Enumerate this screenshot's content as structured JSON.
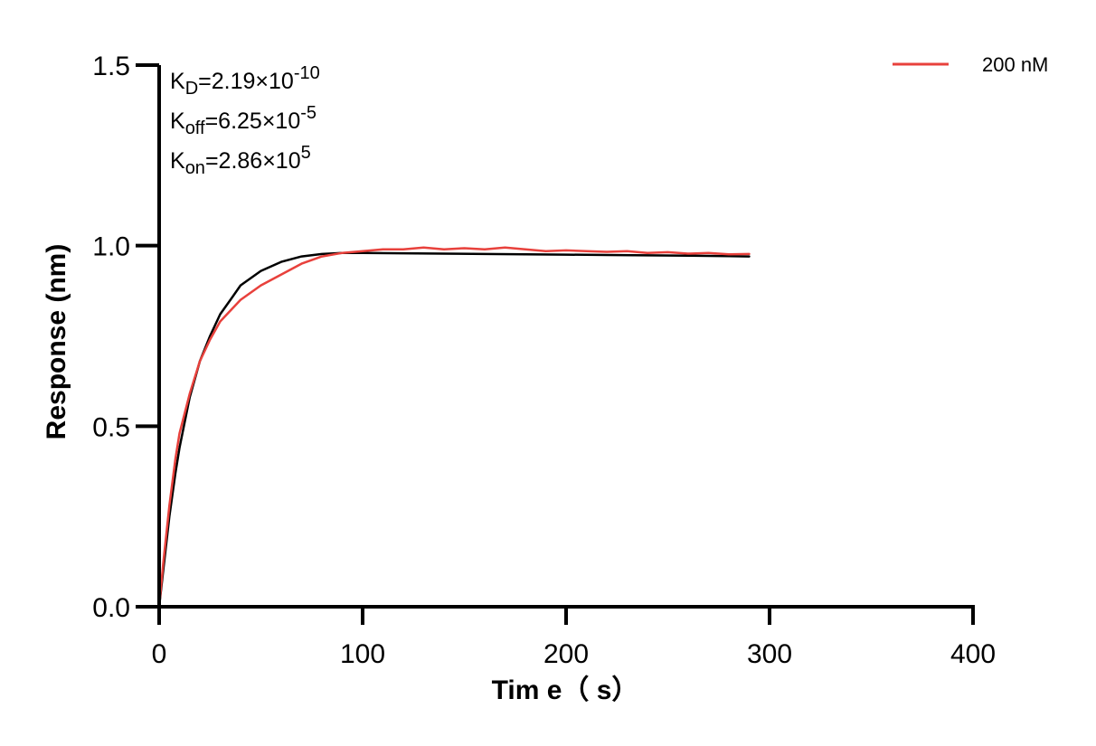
{
  "chart_data": {
    "type": "line",
    "xlabel": "Tim e（ s）",
    "ylabel": "Response (nm)",
    "xlim": [
      0,
      400
    ],
    "ylim": [
      0,
      1.5
    ],
    "x_ticks": [
      "0",
      "100",
      "200",
      "300",
      "400"
    ],
    "y_ticks": [
      "0.0",
      "0.5",
      "1.0",
      "1.5"
    ],
    "grid": false,
    "legend_position": "top-right",
    "annotations": [
      {
        "base": "K",
        "sub": "D",
        "value": "=2.19×10",
        "exp": "-10"
      },
      {
        "base": "K",
        "sub": "off",
        "value": "=6.25×10",
        "exp": "-5"
      },
      {
        "base": "K",
        "sub": "on",
        "value": "=2.86×10",
        "exp": "5"
      }
    ],
    "series": [
      {
        "name": "200 nM",
        "color": "#e8413c",
        "x": [
          0,
          2,
          5,
          8,
          10,
          15,
          20,
          25,
          30,
          35,
          40,
          50,
          60,
          70,
          80,
          90,
          100,
          110,
          120,
          130,
          140,
          150,
          160,
          170,
          180,
          190,
          200,
          210,
          220,
          230,
          240,
          250,
          260,
          270,
          280,
          290
        ],
        "y": [
          0.0,
          0.12,
          0.28,
          0.41,
          0.48,
          0.59,
          0.68,
          0.74,
          0.79,
          0.82,
          0.85,
          0.89,
          0.92,
          0.95,
          0.97,
          0.98,
          0.985,
          0.99,
          0.99,
          0.995,
          0.99,
          0.993,
          0.99,
          0.995,
          0.99,
          0.985,
          0.987,
          0.985,
          0.983,
          0.985,
          0.98,
          0.982,
          0.978,
          0.98,
          0.976,
          0.977
        ]
      },
      {
        "color": "#000000",
        "x": [
          0,
          2,
          5,
          8,
          10,
          15,
          20,
          25,
          30,
          35,
          40,
          50,
          60,
          70,
          80,
          90,
          100,
          120,
          140,
          160,
          180,
          200,
          220,
          240,
          260,
          280,
          290
        ],
        "y": [
          0.0,
          0.1,
          0.25,
          0.37,
          0.44,
          0.58,
          0.68,
          0.75,
          0.81,
          0.85,
          0.89,
          0.93,
          0.955,
          0.97,
          0.977,
          0.98,
          0.98,
          0.979,
          0.978,
          0.977,
          0.976,
          0.975,
          0.974,
          0.973,
          0.972,
          0.971,
          0.97
        ]
      }
    ]
  }
}
